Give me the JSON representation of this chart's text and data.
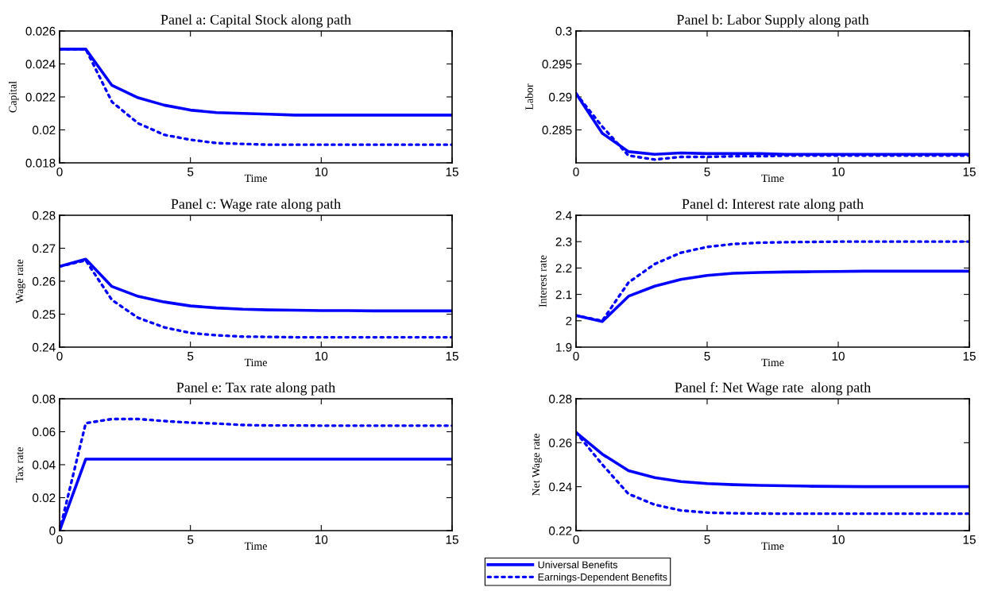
{
  "chart_data": [
    {
      "type": "line",
      "title": "Panel a: Capital Stock along path",
      "xlabel": "Time",
      "ylabel": "Capital",
      "x": [
        0,
        1,
        2,
        3,
        4,
        5,
        6,
        7,
        8,
        9,
        10,
        11,
        12,
        13,
        14,
        15
      ],
      "xlim": [
        0,
        15
      ],
      "xticks": [
        0,
        5,
        10,
        15
      ],
      "ylim": [
        0.018,
        0.026
      ],
      "yticks": [
        0.018,
        0.02,
        0.022,
        0.024,
        0.026
      ],
      "grid": false,
      "marker": "none",
      "series": [
        {
          "color": "#0000ff",
          "line_style": "solid",
          "values": [
            0.0249,
            0.0249,
            0.0227,
            0.02195,
            0.0215,
            0.0212,
            0.02105,
            0.021,
            0.02095,
            0.0209,
            0.0209,
            0.0209,
            0.0209,
            0.0209,
            0.0209,
            0.0209
          ]
        },
        {
          "color": "#0000ff",
          "line_style": "dotted",
          "values": [
            0.0249,
            0.0249,
            0.0217,
            0.0204,
            0.0197,
            0.0194,
            0.0192,
            0.01915,
            0.0191,
            0.0191,
            0.0191,
            0.0191,
            0.0191,
            0.0191,
            0.0191,
            0.0191
          ]
        }
      ]
    },
    {
      "type": "line",
      "title": "Panel b: Labor Supply along path",
      "xlabel": "Time",
      "ylabel": "Labor",
      "x": [
        0,
        1,
        2,
        3,
        4,
        5,
        6,
        7,
        8,
        9,
        10,
        11,
        12,
        13,
        14,
        15
      ],
      "xlim": [
        0,
        15
      ],
      "xticks": [
        0,
        5,
        10,
        15
      ],
      "ylim": [
        0.28,
        0.3
      ],
      "yticks": [
        0.285,
        0.29,
        0.295,
        0.3
      ],
      "grid": false,
      "marker": "none",
      "series": [
        {
          "color": "#0000ff",
          "line_style": "solid",
          "values": [
            0.2905,
            0.2845,
            0.2817,
            0.2813,
            0.2815,
            0.2814,
            0.2814,
            0.2814,
            0.2813,
            0.2813,
            0.2813,
            0.2813,
            0.2813,
            0.2813,
            0.2813,
            0.2813
          ]
        },
        {
          "color": "#0000ff",
          "line_style": "dotted",
          "values": [
            0.2905,
            0.2855,
            0.2811,
            0.2805,
            0.2809,
            0.2809,
            0.281,
            0.281,
            0.2811,
            0.2811,
            0.2811,
            0.2811,
            0.2811,
            0.2811,
            0.2811,
            0.2811
          ]
        }
      ]
    },
    {
      "type": "line",
      "title": "Panel c: Wage rate along path",
      "xlabel": "Time",
      "ylabel": "Wage rate",
      "x": [
        0,
        1,
        2,
        3,
        4,
        5,
        6,
        7,
        8,
        9,
        10,
        11,
        12,
        13,
        14,
        15
      ],
      "xlim": [
        0,
        15
      ],
      "xticks": [
        0,
        5,
        10,
        15
      ],
      "ylim": [
        0.24,
        0.28
      ],
      "yticks": [
        0.24,
        0.25,
        0.26,
        0.27,
        0.28
      ],
      "grid": false,
      "marker": "none",
      "series": [
        {
          "color": "#0000ff",
          "line_style": "solid",
          "values": [
            0.2645,
            0.2667,
            0.2584,
            0.2554,
            0.2537,
            0.2525,
            0.2519,
            0.2515,
            0.2513,
            0.2512,
            0.2511,
            0.2511,
            0.251,
            0.251,
            0.251,
            0.251
          ]
        },
        {
          "color": "#0000ff",
          "line_style": "dotted",
          "values": [
            0.2645,
            0.2663,
            0.2543,
            0.2489,
            0.246,
            0.2443,
            0.2436,
            0.2432,
            0.2431,
            0.243,
            0.243,
            0.243,
            0.243,
            0.243,
            0.243,
            0.243
          ]
        }
      ]
    },
    {
      "type": "line",
      "title": "Panel d: Interest rate along path",
      "xlabel": "Time",
      "ylabel": "Interest rate",
      "x": [
        0,
        1,
        2,
        3,
        4,
        5,
        6,
        7,
        8,
        9,
        10,
        11,
        12,
        13,
        14,
        15
      ],
      "xlim": [
        0,
        15
      ],
      "xticks": [
        0,
        5,
        10,
        15
      ],
      "ylim": [
        1.9,
        2.4
      ],
      "yticks": [
        1.9,
        2,
        2.1,
        2.2,
        2.3,
        2.4
      ],
      "grid": false,
      "marker": "none",
      "series": [
        {
          "color": "#0000ff",
          "line_style": "solid",
          "values": [
            2.02,
            1.997,
            2.093,
            2.131,
            2.157,
            2.172,
            2.18,
            2.183,
            2.185,
            2.186,
            2.187,
            2.188,
            2.188,
            2.188,
            2.188,
            2.188
          ]
        },
        {
          "color": "#0000ff",
          "line_style": "dotted",
          "values": [
            2.02,
            2.0,
            2.145,
            2.215,
            2.258,
            2.28,
            2.291,
            2.296,
            2.298,
            2.299,
            2.3,
            2.3,
            2.3,
            2.3,
            2.3,
            2.3
          ]
        }
      ]
    },
    {
      "type": "line",
      "title": "Panel e: Tax rate along path",
      "xlabel": "Time",
      "ylabel": "Tax rate",
      "x": [
        0,
        1,
        2,
        3,
        4,
        5,
        6,
        7,
        8,
        9,
        10,
        11,
        12,
        13,
        14,
        15
      ],
      "xlim": [
        0,
        15
      ],
      "xticks": [
        0,
        5,
        10,
        15
      ],
      "ylim": [
        0,
        0.08
      ],
      "yticks": [
        0,
        0.02,
        0.04,
        0.06,
        0.08
      ],
      "grid": false,
      "marker": "none",
      "legend": "bottom right",
      "series": [
        {
          "name": "Universal Benefits",
          "color": "#0000ff",
          "line_style": "solid",
          "values": [
            0,
            0.0434,
            0.0434,
            0.0434,
            0.0434,
            0.0434,
            0.0434,
            0.0434,
            0.0434,
            0.0434,
            0.0434,
            0.0434,
            0.0434,
            0.0434,
            0.0434,
            0.0434
          ]
        },
        {
          "name": "Earnings-Dependent Benefits",
          "color": "#0000ff",
          "line_style": "dotted",
          "values": [
            0,
            0.0652,
            0.0677,
            0.0677,
            0.0665,
            0.0655,
            0.065,
            0.0641,
            0.0638,
            0.0638,
            0.0637,
            0.0637,
            0.0637,
            0.0637,
            0.0637,
            0.0637
          ]
        }
      ]
    },
    {
      "type": "line",
      "title": "Panel f: Net Wage rate  along path",
      "xlabel": "Time",
      "ylabel": "Net Wage rate",
      "x": [
        0,
        1,
        2,
        3,
        4,
        5,
        6,
        7,
        8,
        9,
        10,
        11,
        12,
        13,
        14,
        15
      ],
      "xlim": [
        0,
        15
      ],
      "xticks": [
        0,
        5,
        10,
        15
      ],
      "ylim": [
        0.22,
        0.28
      ],
      "yticks": [
        0.22,
        0.24,
        0.26,
        0.28
      ],
      "grid": false,
      "marker": "none",
      "series": [
        {
          "color": "#0000ff",
          "line_style": "solid",
          "values": [
            0.2647,
            0.2548,
            0.2473,
            0.2441,
            0.2423,
            0.2414,
            0.2409,
            0.2406,
            0.2404,
            0.2402,
            0.2401,
            0.24,
            0.24,
            0.24,
            0.24,
            0.24
          ]
        },
        {
          "color": "#0000ff",
          "line_style": "dotted",
          "values": [
            0.2647,
            0.2501,
            0.2367,
            0.2318,
            0.2292,
            0.2282,
            0.2279,
            0.2278,
            0.2277,
            0.2277,
            0.2277,
            0.2277,
            0.2277,
            0.2277,
            0.2277,
            0.2277
          ]
        }
      ]
    }
  ]
}
